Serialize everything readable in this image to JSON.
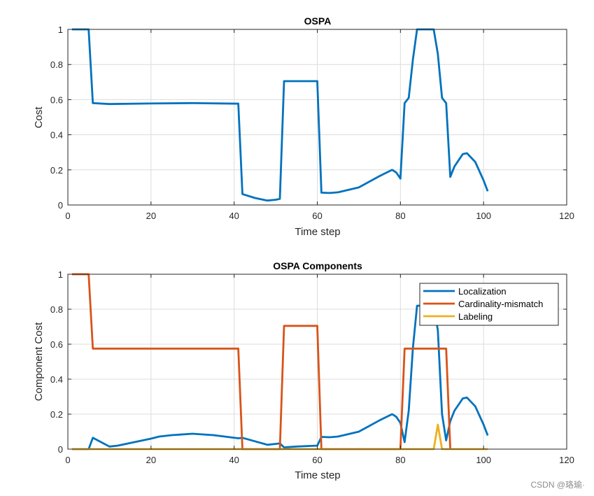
{
  "watermark": "CSDN @珞瑜·",
  "chart_data": [
    {
      "type": "line",
      "title": "OSPA",
      "xlabel": "Time step",
      "ylabel": "Cost",
      "xlim": [
        0,
        120
      ],
      "ylim": [
        0,
        1
      ],
      "xticks": [
        0,
        20,
        40,
        60,
        80,
        100,
        120
      ],
      "yticks": [
        0,
        0.2,
        0.4,
        0.6,
        0.8,
        1
      ],
      "grid": true,
      "series": [
        {
          "color": "#0072BD",
          "x": [
            1,
            2,
            3,
            4,
            5,
            6,
            10,
            20,
            30,
            41,
            42,
            45,
            48,
            50,
            51,
            52,
            55,
            60,
            61,
            63,
            65,
            70,
            75,
            78,
            79,
            80,
            81,
            82,
            83,
            84,
            85,
            86,
            87,
            88,
            89,
            90,
            91,
            92,
            93,
            95,
            96,
            98,
            100,
            101
          ],
          "y": [
            1,
            1,
            1,
            1,
            1,
            0.58,
            0.575,
            0.578,
            0.58,
            0.577,
            0.062,
            0.04,
            0.025,
            0.03,
            0.035,
            0.705,
            0.705,
            0.705,
            0.07,
            0.068,
            0.072,
            0.1,
            0.165,
            0.2,
            0.185,
            0.15,
            0.58,
            0.61,
            0.83,
            1,
            1,
            1,
            1,
            1,
            0.86,
            0.61,
            0.58,
            0.16,
            0.22,
            0.29,
            0.295,
            0.245,
            0.14,
            0.078
          ]
        }
      ]
    },
    {
      "type": "line",
      "title": "OSPA Components",
      "xlabel": "Time step",
      "ylabel": "Component Cost",
      "xlim": [
        0,
        120
      ],
      "ylim": [
        0,
        1
      ],
      "xticks": [
        0,
        20,
        40,
        60,
        80,
        100,
        120
      ],
      "yticks": [
        0,
        0.2,
        0.4,
        0.6,
        0.8,
        1
      ],
      "grid": true,
      "legend": "top-right",
      "series": [
        {
          "name": "Localization",
          "color": "#0072BD",
          "x": [
            1,
            5,
            6,
            8,
            10,
            12,
            15,
            20,
            22,
            25,
            30,
            35,
            41,
            42,
            45,
            48,
            50,
            51,
            52,
            55,
            60,
            61,
            63,
            65,
            70,
            75,
            78,
            79,
            80,
            81,
            82,
            83,
            84,
            85,
            86,
            87,
            88,
            89,
            90,
            91,
            92,
            93,
            95,
            96,
            98,
            100,
            101
          ],
          "y": [
            0,
            0,
            0.065,
            0.04,
            0.015,
            0.02,
            0.035,
            0.06,
            0.072,
            0.08,
            0.088,
            0.08,
            0.062,
            0.065,
            0.045,
            0.025,
            0.03,
            0.033,
            0.01,
            0.015,
            0.02,
            0.07,
            0.068,
            0.072,
            0.1,
            0.165,
            0.2,
            0.185,
            0.15,
            0.04,
            0.22,
            0.58,
            0.82,
            0.82,
            0.82,
            0.82,
            0.82,
            0.68,
            0.2,
            0.05,
            0.16,
            0.22,
            0.29,
            0.295,
            0.245,
            0.14,
            0.078
          ]
        },
        {
          "name": "Cardinality-mismatch",
          "color": "#D95319",
          "x": [
            1,
            5,
            6,
            41,
            42,
            50,
            51,
            52,
            55,
            60,
            61,
            80,
            81,
            85,
            90,
            91,
            92
          ],
          "y": [
            1,
            1,
            0.575,
            0.575,
            0,
            0,
            0,
            0.705,
            0.705,
            0.705,
            0,
            0,
            0.575,
            0.575,
            0.575,
            0.575,
            0
          ],
          "y_note_removed": true
        },
        {
          "name": "Labeling",
          "color": "#EDB120",
          "x": [
            1,
            88,
            89,
            90,
            101
          ],
          "y": [
            0,
            0,
            0.14,
            0,
            0
          ]
        }
      ]
    }
  ]
}
